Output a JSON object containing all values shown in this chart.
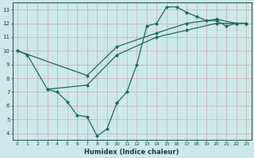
{
  "bg_color": "#cce8e8",
  "grid_color": "#cc8888",
  "line_color": "#1a6b5a",
  "xlabel": "Humidex (Indice chaleur)",
  "xlim": [
    -0.5,
    23.5
  ],
  "ylim": [
    3.5,
    13.5
  ],
  "xticks": [
    0,
    1,
    2,
    3,
    4,
    5,
    6,
    7,
    8,
    9,
    10,
    11,
    12,
    13,
    14,
    15,
    16,
    17,
    18,
    19,
    20,
    21,
    22,
    23
  ],
  "yticks": [
    4,
    5,
    6,
    7,
    8,
    9,
    10,
    11,
    12,
    13
  ],
  "line1_x": [
    0,
    1,
    3,
    4,
    5,
    6,
    7,
    8,
    9,
    10
  ],
  "line1_y": [
    10.0,
    9.7,
    7.2,
    7.0,
    6.3,
    5.3,
    5.2,
    3.8,
    4.3,
    6.2
  ],
  "line2_x": [
    3,
    7,
    10,
    14,
    17,
    20,
    22,
    23
  ],
  "line2_y": [
    7.2,
    7.5,
    9.7,
    11.0,
    11.5,
    12.0,
    12.0,
    12.0
  ],
  "line3_x": [
    0,
    7,
    10,
    14,
    17,
    20,
    22,
    23
  ],
  "line3_y": [
    10.0,
    8.2,
    10.3,
    11.3,
    12.0,
    12.3,
    12.0,
    12.0
  ],
  "line4_x": [
    10,
    11,
    12,
    13,
    14,
    15,
    16,
    17,
    18,
    19,
    20,
    21,
    22,
    23
  ],
  "line4_y": [
    6.2,
    7.0,
    9.0,
    11.8,
    12.0,
    13.2,
    13.2,
    12.8,
    12.5,
    12.2,
    12.2,
    11.8,
    12.0,
    12.0
  ]
}
